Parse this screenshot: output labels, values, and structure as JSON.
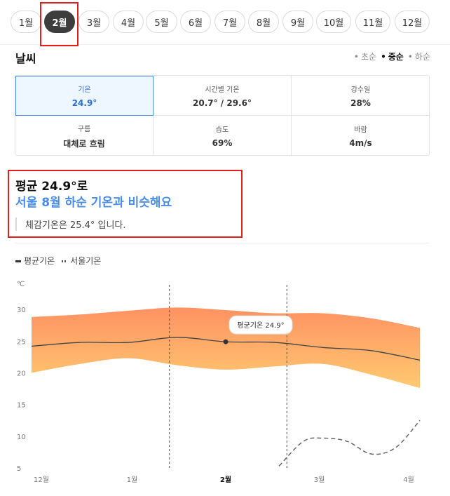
{
  "months": [
    {
      "label": "1월"
    },
    {
      "label": "2월",
      "active": true
    },
    {
      "label": "3월"
    },
    {
      "label": "4월"
    },
    {
      "label": "5월"
    },
    {
      "label": "6월"
    },
    {
      "label": "7월"
    },
    {
      "label": "8월"
    },
    {
      "label": "9월"
    },
    {
      "label": "10월"
    },
    {
      "label": "11월"
    },
    {
      "label": "12월"
    }
  ],
  "weather": {
    "title": "날씨",
    "periods": [
      {
        "label": "초순"
      },
      {
        "label": "중순",
        "active": true
      },
      {
        "label": "하순"
      }
    ],
    "stats": [
      {
        "key": "기온",
        "value": "24.9°",
        "selected": true
      },
      {
        "key": "시간별 기온",
        "value": "20.7° / 29.6°"
      },
      {
        "key": "강수일",
        "value": "28%"
      },
      {
        "key": "구름",
        "value": "대체로 흐림"
      },
      {
        "key": "습도",
        "value": "69%"
      },
      {
        "key": "바람",
        "value": "4m/s"
      }
    ]
  },
  "summary": {
    "avg_line": "평균 24.9°로",
    "compare_line": "서울 8월 하순 기온과 비슷해요",
    "feels_like": "체감기온은 25.4° 입니다."
  },
  "legend": [
    {
      "label": "평균기온"
    },
    {
      "label": "서울기온"
    }
  ],
  "chart_data": {
    "type": "area",
    "unit": "℃",
    "ylim": [
      5,
      32
    ],
    "yticks": [
      5,
      10,
      15,
      20,
      25,
      30
    ],
    "xticks": [
      {
        "label": "12월",
        "x": 0
      },
      {
        "label": "1월",
        "x": 1
      },
      {
        "label": "2월",
        "x": 2,
        "bold": true
      },
      {
        "label": "3월",
        "x": 3
      },
      {
        "label": "4월",
        "x": 4
      }
    ],
    "series": [
      {
        "name": "평균기온",
        "x": [
          0,
          0.5,
          1,
          1.5,
          2,
          2.5,
          3,
          3.5,
          4
        ],
        "values": [
          24.2,
          24.8,
          24.8,
          25.6,
          24.9,
          24.8,
          24.0,
          23.5,
          22.0
        ],
        "upper": [
          28.8,
          29.2,
          29.8,
          30.3,
          29.9,
          29.4,
          29.4,
          28.6,
          27.1
        ],
        "lower": [
          20.0,
          21.4,
          22.3,
          21.2,
          20.5,
          21.0,
          21.4,
          19.7,
          17.6
        ]
      },
      {
        "name": "서울기온",
        "x": [
          2.55,
          2.8,
          3.0,
          3.25,
          3.5,
          3.75,
          4
        ],
        "values": [
          5.3,
          9.2,
          9.7,
          9.2,
          7.2,
          8.2,
          12.5
        ]
      }
    ],
    "tooltip": {
      "label": "평균기온 24.9°",
      "x": 2,
      "value": 24.9
    },
    "colors": {
      "band_top": "#ff8c5a",
      "band_bottom": "#ffc769",
      "line": "#444444",
      "seoul": "#666666"
    }
  }
}
